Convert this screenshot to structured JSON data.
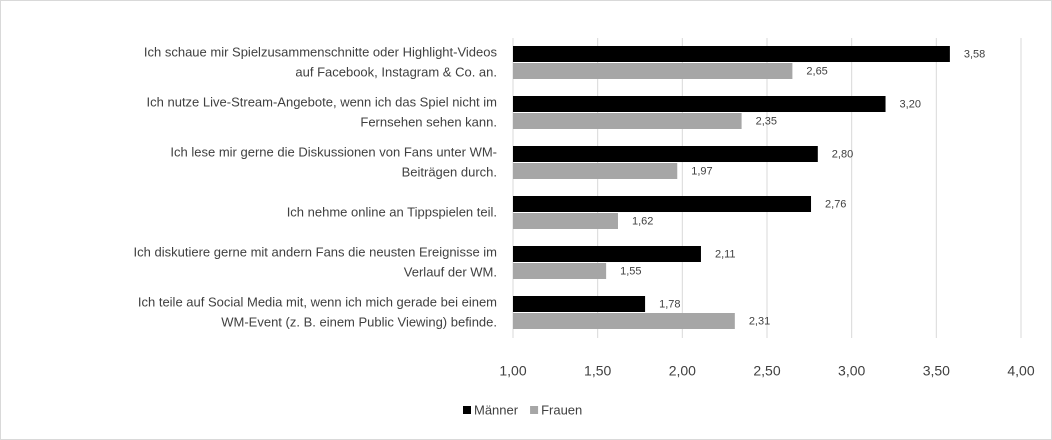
{
  "chart_data": {
    "type": "barh",
    "categories": [
      [
        "Ich schaue mir Spielzusammenschnitte oder Highlight-Videos",
        "auf Facebook, Instagram & Co. an."
      ],
      [
        "Ich nutze Live-Stream-Angebote, wenn ich das Spiel nicht im",
        "Fernsehen sehen kann."
      ],
      [
        "Ich lese mir gerne die Diskussionen von Fans unter WM-",
        "Beiträgen durch."
      ],
      [
        "Ich nehme online an Tippspielen teil."
      ],
      [
        "Ich diskutiere gerne mit andern Fans die neusten Ereignisse im",
        "Verlauf der WM."
      ],
      [
        "Ich teile auf Social Media mit, wenn ich mich gerade bei einem",
        "WM-Event (z. B. einem Public Viewing) befinde."
      ]
    ],
    "series": [
      {
        "name": "Männer",
        "color": "#000000",
        "values": [
          3.58,
          3.2,
          2.8,
          2.76,
          2.11,
          1.78
        ],
        "value_labels": [
          "3,58",
          "3,20",
          "2,80",
          "2,76",
          "2,11",
          "1,78"
        ]
      },
      {
        "name": "Frauen",
        "color": "#a6a6a6",
        "values": [
          2.65,
          2.35,
          1.97,
          1.62,
          1.55,
          2.31
        ],
        "value_labels": [
          "2,65",
          "2,35",
          "1,97",
          "1,62",
          "1,55",
          "2,31"
        ]
      }
    ],
    "xlim": [
      1,
      4
    ],
    "xticks": [
      {
        "value": 1,
        "label": "1,00"
      },
      {
        "value": 1.5,
        "label": "1,50"
      },
      {
        "value": 2,
        "label": "2,00"
      },
      {
        "value": 2.5,
        "label": "2,50"
      },
      {
        "value": 3,
        "label": "3,00"
      },
      {
        "value": 3.5,
        "label": "3,50"
      },
      {
        "value": 4,
        "label": "4,00"
      }
    ],
    "grid": true,
    "legend": "bottom"
  }
}
